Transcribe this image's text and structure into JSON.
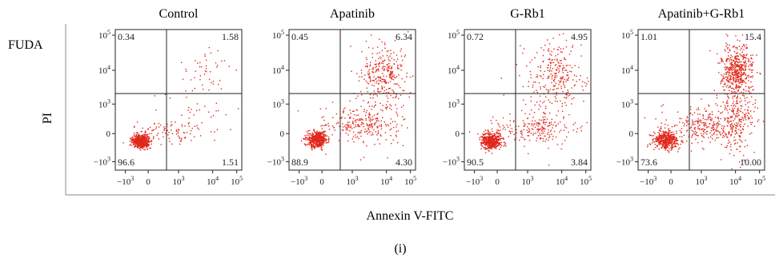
{
  "figure": {
    "row_label": "FUDA",
    "y_axis_label": "PI",
    "x_axis_label": "Annexin V-FITC",
    "caption": "(i)"
  },
  "axis_ticks": {
    "x": [
      {
        "base": "−10",
        "exp": "3"
      },
      {
        "base": "0",
        "exp": ""
      },
      {
        "base": "10",
        "exp": "3"
      },
      {
        "base": "10",
        "exp": "4"
      },
      {
        "base": "10",
        "exp": "5"
      }
    ],
    "y": [
      {
        "base": "10",
        "exp": "5"
      },
      {
        "base": "10",
        "exp": "4"
      },
      {
        "base": "10",
        "exp": "3"
      },
      {
        "base": "0",
        "exp": ""
      },
      {
        "base": "−10",
        "exp": "3"
      }
    ]
  },
  "colors": {
    "dots": "#e0271b",
    "axes": "#222222"
  },
  "chart_data": [
    {
      "type": "scatter",
      "title": "Control",
      "xlabel": "Annexin V-FITC",
      "ylabel": "PI",
      "scale": "biexponential",
      "quadrants": {
        "top_left": "0.34",
        "top_right": "1.58",
        "bottom_left": "96.6",
        "bottom_right": "1.51"
      }
    },
    {
      "type": "scatter",
      "title": "Apatinib",
      "xlabel": "Annexin V-FITC",
      "ylabel": "PI",
      "scale": "biexponential",
      "quadrants": {
        "top_left": "0.45",
        "top_right": "6.34",
        "bottom_left": "88.9",
        "bottom_right": "4.30"
      }
    },
    {
      "type": "scatter",
      "title": "G-Rb1",
      "xlabel": "Annexin V-FITC",
      "ylabel": "PI",
      "scale": "biexponential",
      "quadrants": {
        "top_left": "0.72",
        "top_right": "4.95",
        "bottom_left": "90.5",
        "bottom_right": "3.84"
      }
    },
    {
      "type": "scatter",
      "title": "Apatinib+G-Rb1",
      "xlabel": "Annexin V-FITC",
      "ylabel": "PI",
      "scale": "biexponential",
      "quadrants": {
        "top_left": "1.01",
        "top_right": "15.4",
        "bottom_left": "73.6",
        "bottom_right": "10.00"
      }
    }
  ]
}
